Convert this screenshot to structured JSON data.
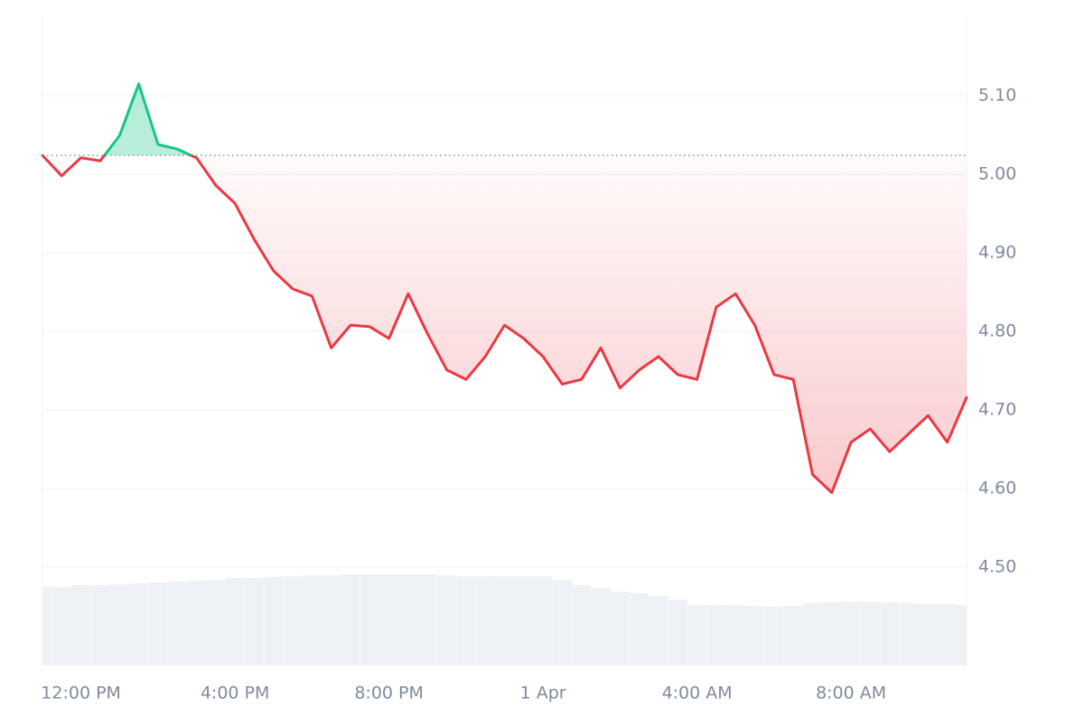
{
  "chart_data": {
    "type": "line",
    "x": [
      11,
      11.5,
      12,
      12.5,
      13,
      13.5,
      14,
      14.5,
      15,
      15.5,
      16,
      16.5,
      17,
      17.5,
      18,
      18.5,
      19,
      19.5,
      20,
      20.5,
      21,
      21.5,
      22,
      22.5,
      23,
      23.5,
      24,
      24.5,
      25,
      25.5,
      26,
      26.5,
      27,
      27.5,
      28,
      28.5,
      29,
      29.5,
      30,
      30.5,
      31,
      31.5,
      32,
      32.5,
      33,
      33.5,
      34,
      34.5,
      35
    ],
    "values": [
      5.024,
      4.998,
      5.021,
      5.017,
      5.049,
      5.115,
      5.038,
      5.032,
      5.021,
      4.986,
      4.963,
      4.917,
      4.877,
      4.854,
      4.845,
      4.779,
      4.808,
      4.806,
      4.791,
      4.848,
      4.797,
      4.751,
      4.739,
      4.768,
      4.808,
      4.791,
      4.768,
      4.733,
      4.739,
      4.779,
      4.728,
      4.751,
      4.768,
      4.745,
      4.739,
      4.831,
      4.848,
      4.808,
      4.745,
      4.739,
      4.618,
      4.595,
      4.659,
      4.676,
      4.647,
      4.67,
      4.693,
      4.659,
      4.716
    ],
    "reference_line": 5.024,
    "color_up": "#16c784",
    "color_down": "#ea3943",
    "volume": {
      "color": "#eef1f5",
      "values": [
        87,
        87,
        89,
        89,
        90,
        91,
        92,
        93,
        94,
        95,
        97,
        97,
        98,
        99,
        100,
        100,
        101,
        101,
        101,
        101,
        101,
        100,
        99,
        99,
        99,
        99,
        99,
        95,
        89,
        86,
        82,
        80,
        77,
        73,
        67,
        67,
        67,
        66,
        65,
        66,
        69,
        70,
        71,
        71,
        70,
        69,
        68,
        68,
        67
      ]
    },
    "xlim": [
      11,
      35
    ],
    "xticks": [
      {
        "value": 12,
        "label": "12:00 PM"
      },
      {
        "value": 16,
        "label": "4:00 PM"
      },
      {
        "value": 20,
        "label": "8:00 PM"
      },
      {
        "value": 24,
        "label": "1 Apr"
      },
      {
        "value": 28,
        "label": "4:00 AM"
      },
      {
        "value": 32,
        "label": "8:00 AM"
      }
    ],
    "ylim": [
      4.375,
      5.201
    ],
    "yticks": [
      {
        "value": 4.5,
        "label": "4.50"
      },
      {
        "value": 4.6,
        "label": "4.60"
      },
      {
        "value": 4.7,
        "label": "4.70"
      },
      {
        "value": 4.8,
        "label": "4.80"
      },
      {
        "value": 4.9,
        "label": "4.90"
      },
      {
        "value": 5.0,
        "label": "5.00"
      },
      {
        "value": 5.1,
        "label": "5.10"
      }
    ],
    "grid": true
  }
}
